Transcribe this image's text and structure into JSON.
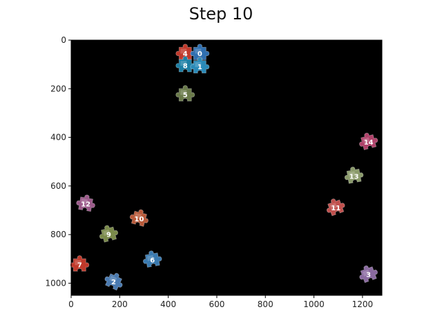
{
  "title": "Step 10",
  "chart_data": {
    "type": "scatter",
    "title": "Step 10",
    "xlim": [
      0,
      1280
    ],
    "ylim": [
      1050,
      0
    ],
    "xticks": [
      0,
      200,
      400,
      600,
      800,
      1000,
      1200
    ],
    "yticks": [
      0,
      200,
      400,
      600,
      800,
      1000
    ],
    "grid": false,
    "background": "#000000",
    "pieces": [
      {
        "label": "4",
        "x": 470,
        "y": 55,
        "color": "#c0392b",
        "angle": 0
      },
      {
        "label": "0",
        "x": 530,
        "y": 55,
        "color": "#2f6fb0",
        "angle": 0
      },
      {
        "label": "8",
        "x": 470,
        "y": 105,
        "color": "#1d7fa5",
        "angle": 0
      },
      {
        "label": "1",
        "x": 530,
        "y": 110,
        "color": "#2a8ab8",
        "angle": 0
      },
      {
        "label": "5",
        "x": 470,
        "y": 225,
        "color": "#6a7a4a",
        "angle": 0
      },
      {
        "label": "14",
        "x": 1225,
        "y": 420,
        "color": "#b0426a",
        "angle": -15
      },
      {
        "label": "13",
        "x": 1165,
        "y": 560,
        "color": "#8a9a6a",
        "angle": -10
      },
      {
        "label": "12",
        "x": 60,
        "y": 675,
        "color": "#9b5a8a",
        "angle": 10
      },
      {
        "label": "11",
        "x": 1090,
        "y": 690,
        "color": "#c0504d",
        "angle": -20
      },
      {
        "label": "10",
        "x": 280,
        "y": 735,
        "color": "#b85a3a",
        "angle": 15
      },
      {
        "label": "9",
        "x": 155,
        "y": 800,
        "color": "#7a8a4a",
        "angle": -15
      },
      {
        "label": "6",
        "x": 335,
        "y": 905,
        "color": "#3a7ab0",
        "angle": -10
      },
      {
        "label": "7",
        "x": 35,
        "y": 925,
        "color": "#c0392b",
        "angle": 0
      },
      {
        "label": "3",
        "x": 1225,
        "y": 965,
        "color": "#8a6aa0",
        "angle": -20
      },
      {
        "label": "2",
        "x": 175,
        "y": 995,
        "color": "#4a7ab0",
        "angle": 25
      }
    ]
  }
}
